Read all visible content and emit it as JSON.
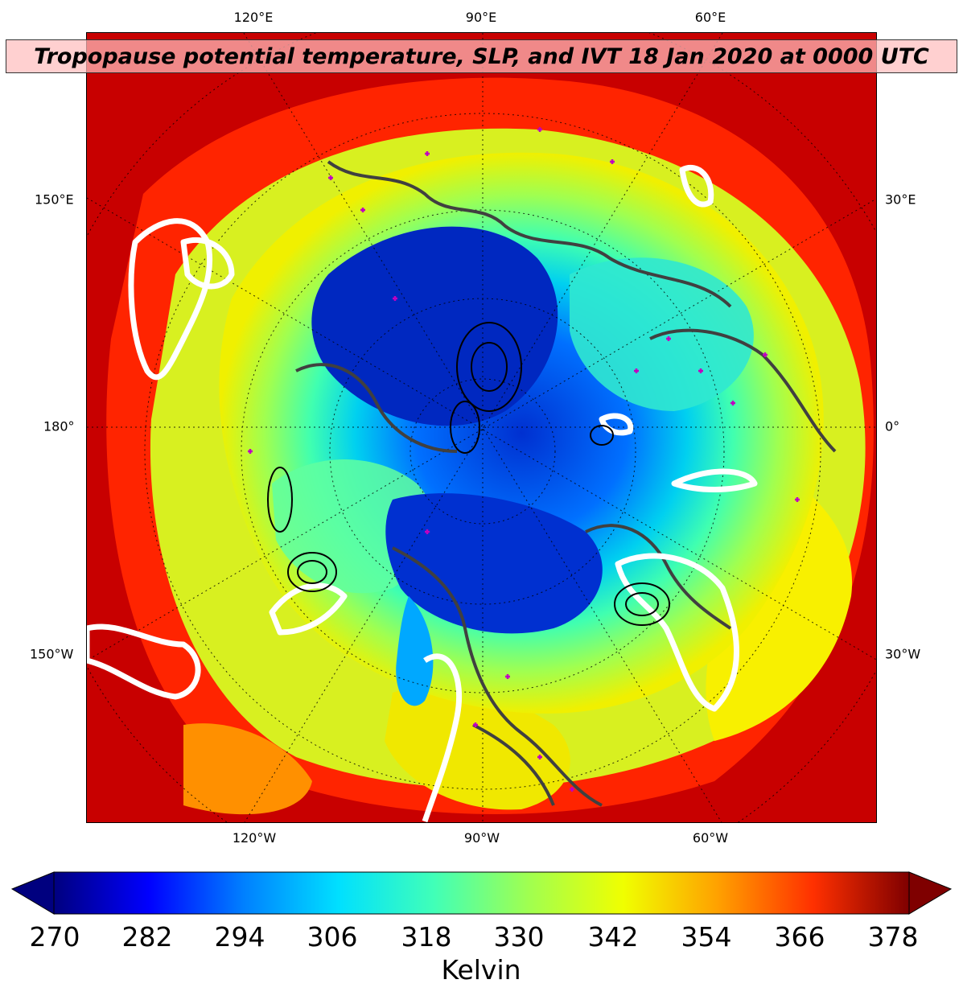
{
  "title": "Tropopause potential temperature, SLP, and IVT 18 Jan 2020 at 0000 UTC",
  "top_labels": [
    "120°E",
    "90°E",
    "60°E"
  ],
  "bottom_labels": [
    "120°W",
    "90°W",
    "60°W"
  ],
  "left_labels": [
    "150°E",
    "180°",
    "150°W"
  ],
  "right_labels": [
    "30°E",
    "0°",
    "30°W"
  ],
  "colorbar": {
    "ticks": [
      "270",
      "282",
      "294",
      "306",
      "318",
      "330",
      "342",
      "354",
      "366",
      "378"
    ],
    "label": "Kelvin",
    "colors": [
      "#00007f",
      "#0000ff",
      "#0080ff",
      "#00e0ff",
      "#40ffb8",
      "#a0ff50",
      "#f0ff00",
      "#ffa000",
      "#ff3000",
      "#7f0000"
    ]
  }
}
